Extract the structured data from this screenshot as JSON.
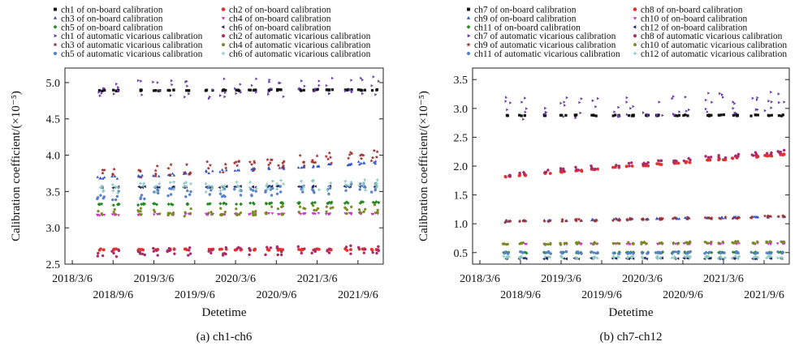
{
  "chart_data": [
    {
      "type": "scatter",
      "caption": "(a) ch1-ch6",
      "xlabel": "Detetime",
      "ylabel": "Calibration coefficient/(×10⁻⁵)",
      "ylim": [
        2.5,
        5.2
      ],
      "yticks": [
        2.5,
        3.0,
        3.5,
        4.0,
        4.5,
        5.0
      ],
      "ytick_labels": [
        "2.5",
        "3.0",
        "3.5",
        "4.0",
        "4.5",
        "5.0"
      ],
      "xlim": [
        2018.08,
        2021.98
      ],
      "xticks": [
        2018.17,
        2018.67,
        2019.17,
        2019.67,
        2020.17,
        2020.67,
        2021.17,
        2021.67
      ],
      "xtick_labels": [
        "2018/3/6",
        "2018/9/6",
        "2019/3/6",
        "2019/9/6",
        "2020/3/6",
        "2020/9/6",
        "2021/3/6",
        "2021/9/6"
      ],
      "clusters": [
        2018.52,
        2018.7,
        2019.02,
        2019.2,
        2019.38,
        2019.58,
        2019.85,
        2020.02,
        2020.2,
        2020.38,
        2020.58,
        2020.72,
        2020.98,
        2021.15,
        2021.32,
        2021.55,
        2021.72,
        2021.88
      ],
      "series": [
        {
          "name": "ch1 of on-board calibration",
          "marker": "square",
          "color": "#111111",
          "start": 4.89,
          "end": 4.9,
          "spread": 0.01
        },
        {
          "name": "ch2 of on-board calibration",
          "marker": "circle",
          "color": "#e53030",
          "start": 2.7,
          "end": 2.7,
          "spread": 0.01
        },
        {
          "name": "ch3 of on-board calibration",
          "marker": "triangle-up",
          "color": "#3355cc",
          "start": 3.68,
          "end": 3.9,
          "spread": 0.02
        },
        {
          "name": "ch4 of on-board calibration",
          "marker": "triangle-down",
          "color": "#cc33cc",
          "start": 3.18,
          "end": 3.2,
          "spread": 0.01
        },
        {
          "name": "ch5 of on-board calibration",
          "marker": "diamond",
          "color": "#2a8a2a",
          "start": 3.32,
          "end": 3.35,
          "spread": 0.01
        },
        {
          "name": "ch6 of on-board calibration",
          "marker": "triangle-left",
          "color": "#222266",
          "start": 3.56,
          "end": 3.57,
          "spread": 0.01
        },
        {
          "name": "ch1 of automatic vicarious calibration",
          "marker": "triangle-right",
          "color": "#6a3aa8",
          "start": 4.9,
          "end": 4.95,
          "spread": 0.14
        },
        {
          "name": "ch2 of automatic vicarious calibration",
          "marker": "hexagon",
          "color": "#aa2a6a",
          "start": 2.66,
          "end": 2.7,
          "spread": 0.06
        },
        {
          "name": "ch3 of automatic vicarious calibration",
          "marker": "star",
          "color": "#a03030",
          "start": 3.72,
          "end": 4.0,
          "spread": 0.08
        },
        {
          "name": "ch4 of automatic vicarious calibration",
          "marker": "pentagon",
          "color": "#7a8a20",
          "start": 3.2,
          "end": 3.26,
          "spread": 0.06
        },
        {
          "name": "ch5 of automatic vicarious calibration",
          "marker": "hexagon",
          "color": "#5a82c8",
          "start": 3.45,
          "end": 3.55,
          "spread": 0.07
        },
        {
          "name": "ch6 of automatic vicarious calibration",
          "marker": "plus",
          "color": "#8acac0",
          "start": 3.55,
          "end": 3.6,
          "spread": 0.08
        }
      ]
    },
    {
      "type": "scatter",
      "caption": "(b) ch7-ch12",
      "xlabel": "Detetime",
      "ylabel": "Calibration coefficient/(×10⁻⁵)",
      "ylim": [
        0.3,
        3.7
      ],
      "yticks": [
        0.5,
        1.0,
        1.5,
        2.0,
        2.5,
        3.0,
        3.5
      ],
      "ytick_labels": [
        "0.5",
        "1.0",
        "1.5",
        "2.0",
        "2.5",
        "3.0",
        "3.5"
      ],
      "xlim": [
        2018.08,
        2021.98
      ],
      "xticks": [
        2018.17,
        2018.67,
        2019.17,
        2019.67,
        2020.17,
        2020.67,
        2021.17,
        2021.67
      ],
      "xtick_labels": [
        "2018/3/6",
        "2018/9/6",
        "2019/3/6",
        "2019/9/6",
        "2020/3/6",
        "2020/9/6",
        "2021/3/6",
        "2021/9/6"
      ],
      "clusters": [
        2018.5,
        2018.7,
        2019.0,
        2019.2,
        2019.38,
        2019.58,
        2019.85,
        2020.02,
        2020.2,
        2020.38,
        2020.58,
        2020.72,
        2020.98,
        2021.15,
        2021.32,
        2021.55,
        2021.72,
        2021.88
      ],
      "series": [
        {
          "name": "ch7 of on-board calibration",
          "marker": "square",
          "color": "#111111",
          "start": 2.88,
          "end": 2.88,
          "spread": 0.01
        },
        {
          "name": "ch8 of on-board calibration",
          "marker": "circle",
          "color": "#e53030",
          "start": 1.82,
          "end": 2.2,
          "spread": 0.01
        },
        {
          "name": "ch9 of on-board calibration",
          "marker": "triangle-up",
          "color": "#3355cc",
          "start": 1.04,
          "end": 1.12,
          "spread": 0.01
        },
        {
          "name": "ch10 of on-board calibration",
          "marker": "triangle-down",
          "color": "#cc33cc",
          "start": 0.65,
          "end": 0.66,
          "spread": 0.01
        },
        {
          "name": "ch11 of on-board calibration",
          "marker": "diamond",
          "color": "#2a8a2a",
          "start": 0.5,
          "end": 0.5,
          "spread": 0.01
        },
        {
          "name": "ch12 of on-board calibration",
          "marker": "triangle-left",
          "color": "#222266",
          "start": 0.4,
          "end": 0.4,
          "spread": 0.01
        },
        {
          "name": "ch7 of automatic vicarious calibration",
          "marker": "triangle-right",
          "color": "#6a3aa8",
          "start": 3.0,
          "end": 3.1,
          "spread": 0.2
        },
        {
          "name": "ch8 of automatic vicarious calibration",
          "marker": "hexagon",
          "color": "#aa2a6a",
          "start": 1.85,
          "end": 2.25,
          "spread": 0.03
        },
        {
          "name": "ch9 of automatic vicarious calibration",
          "marker": "star",
          "color": "#a03030",
          "start": 1.04,
          "end": 1.12,
          "spread": 0.02
        },
        {
          "name": "ch10 of automatic vicarious calibration",
          "marker": "pentagon",
          "color": "#7a8a20",
          "start": 0.65,
          "end": 0.68,
          "spread": 0.02
        },
        {
          "name": "ch11 of automatic vicarious calibration",
          "marker": "hexagon",
          "color": "#5a82c8",
          "start": 0.5,
          "end": 0.5,
          "spread": 0.02
        },
        {
          "name": "ch12 of automatic vicarious calibration",
          "marker": "plus",
          "color": "#8acac0",
          "start": 0.42,
          "end": 0.42,
          "spread": 0.02
        }
      ]
    }
  ]
}
